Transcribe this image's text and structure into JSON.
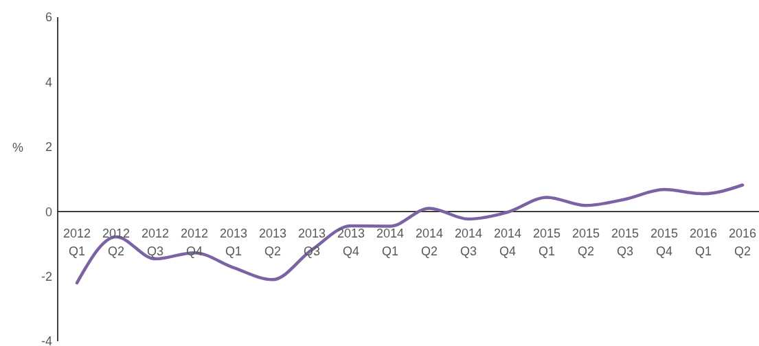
{
  "chart_data": {
    "type": "line",
    "ylabel": "%",
    "categories": [
      "2012 Q1",
      "2012 Q2",
      "2012 Q3",
      "2012 Q4",
      "2013 Q1",
      "2013 Q2",
      "2013 Q3",
      "2013 Q4",
      "2014 Q1",
      "2014 Q2",
      "2014 Q3",
      "2014 Q4",
      "2015 Q1",
      "2015 Q2",
      "2015 Q3",
      "2015 Q4",
      "2016 Q1",
      "2016 Q2"
    ],
    "series": [
      {
        "color": "#7b62a3",
        "values": [
          -2.2,
          -0.78,
          -1.46,
          -1.27,
          -1.73,
          -2.1,
          -1.18,
          -0.44,
          -0.45,
          0.1,
          -0.23,
          -0.02,
          0.44,
          0.19,
          0.38,
          0.68,
          0.55,
          0.82
        ]
      }
    ],
    "ylim": [
      -4,
      6
    ],
    "yticks": [
      -4,
      -2,
      0,
      2,
      4,
      6
    ],
    "grid": false,
    "legend": false,
    "marker": "none",
    "line_style": "solid"
  }
}
